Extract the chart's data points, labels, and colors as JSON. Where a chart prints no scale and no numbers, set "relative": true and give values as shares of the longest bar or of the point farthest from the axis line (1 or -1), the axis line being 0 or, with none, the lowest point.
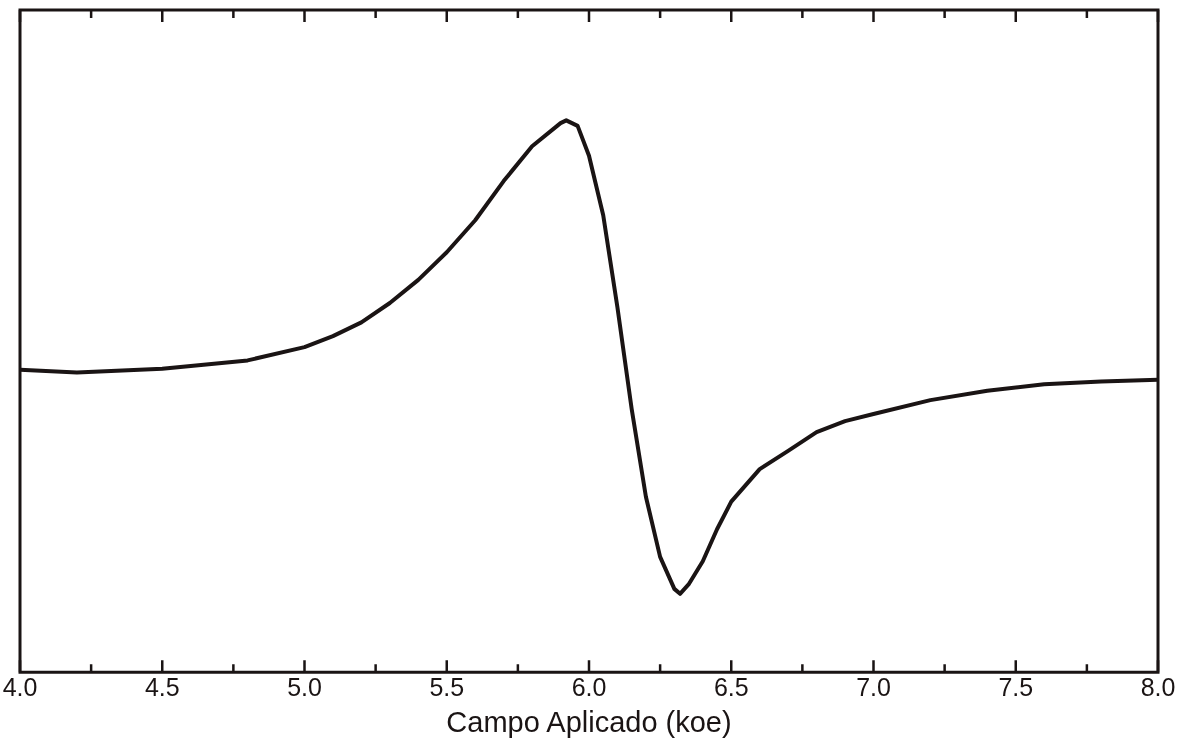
{
  "chart_data": {
    "type": "line",
    "relative": true,
    "xlabel": "Campo Aplicado (koe)",
    "xlim": [
      4.0,
      8.0
    ],
    "xticks": [
      {
        "value": 4.0,
        "label": "4.0"
      },
      {
        "value": 4.25,
        "label": null
      },
      {
        "value": 4.5,
        "label": "4.5"
      },
      {
        "value": 4.75,
        "label": null
      },
      {
        "value": 5.0,
        "label": "5.0"
      },
      {
        "value": 5.25,
        "label": null
      },
      {
        "value": 5.5,
        "label": "5.5"
      },
      {
        "value": 5.75,
        "label": null
      },
      {
        "value": 6.0,
        "label": "6.0"
      },
      {
        "value": 6.25,
        "label": null
      },
      {
        "value": 6.5,
        "label": "6.5"
      },
      {
        "value": 6.75,
        "label": null
      },
      {
        "value": 7.0,
        "label": "7.0"
      },
      {
        "value": 7.25,
        "label": null
      },
      {
        "value": 7.5,
        "label": "7.5"
      },
      {
        "value": 7.75,
        "label": null
      },
      {
        "value": 8.0,
        "label": "8.0"
      }
    ],
    "grid": false,
    "legend": false,
    "marker": "none",
    "line_style": "solid",
    "series": [
      {
        "color": "#1a1414",
        "x": [
          4.0,
          4.2,
          4.5,
          4.8,
          5.0,
          5.1,
          5.2,
          5.3,
          5.4,
          5.5,
          5.6,
          5.7,
          5.8,
          5.9,
          5.92,
          5.96,
          6.0,
          6.05,
          6.1,
          6.15,
          6.2,
          6.25,
          6.3,
          6.32,
          6.35,
          6.4,
          6.45,
          6.5,
          6.6,
          6.7,
          6.8,
          6.9,
          7.0,
          7.2,
          7.4,
          7.6,
          7.8,
          8.0
        ],
        "values": [
          0.548,
          0.543,
          0.55,
          0.565,
          0.589,
          0.609,
          0.634,
          0.669,
          0.711,
          0.761,
          0.819,
          0.89,
          0.953,
          0.995,
          1,
          0.99,
          0.936,
          0.828,
          0.661,
          0.477,
          0.318,
          0.209,
          0.151,
          0.142,
          0.159,
          0.201,
          0.259,
          0.309,
          0.368,
          0.401,
          0.435,
          0.455,
          0.468,
          0.493,
          0.51,
          0.522,
          0.527,
          0.53
        ]
      }
    ]
  }
}
